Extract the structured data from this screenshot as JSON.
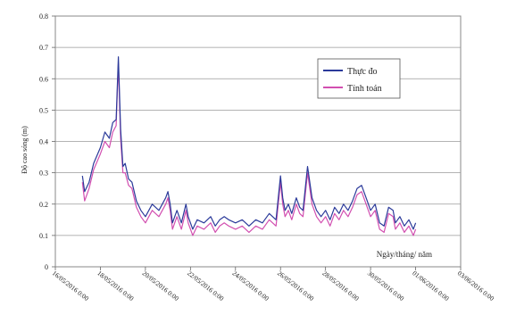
{
  "chart_data": {
    "type": "line",
    "title": "",
    "xlabel": "Ngày/tháng/ năm",
    "ylabel": "Độ cao sóng (m)",
    "ylim": [
      0,
      0.8
    ],
    "yticks": [
      "0",
      "0.1",
      "0.2",
      "0.3",
      "0.4",
      "0.5",
      "0.6",
      "0.7",
      "0.8"
    ],
    "xlim": [
      0,
      18
    ],
    "xtick_values": [
      0,
      2,
      4,
      6,
      8,
      10,
      12,
      14,
      16,
      18
    ],
    "xticks": [
      "16/05/2016 0:00",
      "18/05/2016 0:00",
      "20/05/2016 0:00",
      "22/05/2016 0:00",
      "24/05/2016 0:00",
      "26/05/2016 0:00",
      "28/05/2016 0:00",
      "30/05/2016 0:00",
      "01/06/2016 0:00",
      "03/06/2016 0:00"
    ],
    "grid": "horizontal",
    "legend_position": "top-right",
    "series": [
      {
        "name": "Thực đo",
        "color": "#2b3a9a",
        "x": [
          1.2,
          1.3,
          1.5,
          1.7,
          2.0,
          2.2,
          2.4,
          2.55,
          2.7,
          2.8,
          2.9,
          3.0,
          3.1,
          3.25,
          3.4,
          3.6,
          3.8,
          4.0,
          4.3,
          4.6,
          4.9,
          5.0,
          5.1,
          5.2,
          5.4,
          5.6,
          5.8,
          5.9,
          6.1,
          6.3,
          6.6,
          6.9,
          7.1,
          7.3,
          7.5,
          7.7,
          8.0,
          8.3,
          8.6,
          8.9,
          9.2,
          9.5,
          9.8,
          10.0,
          10.1,
          10.2,
          10.35,
          10.5,
          10.7,
          10.85,
          11.0,
          11.2,
          11.4,
          11.6,
          11.8,
          12.0,
          12.2,
          12.4,
          12.6,
          12.8,
          13.0,
          13.2,
          13.4,
          13.6,
          13.8,
          14.0,
          14.2,
          14.4,
          14.6,
          14.8,
          15.0,
          15.1,
          15.3,
          15.5,
          15.7,
          15.9,
          16.0
        ],
        "values": [
          0.29,
          0.24,
          0.27,
          0.33,
          0.38,
          0.43,
          0.41,
          0.46,
          0.47,
          0.67,
          0.44,
          0.32,
          0.33,
          0.28,
          0.27,
          0.21,
          0.18,
          0.16,
          0.2,
          0.18,
          0.22,
          0.24,
          0.2,
          0.14,
          0.18,
          0.14,
          0.2,
          0.16,
          0.12,
          0.15,
          0.14,
          0.16,
          0.13,
          0.15,
          0.16,
          0.15,
          0.14,
          0.15,
          0.13,
          0.15,
          0.14,
          0.17,
          0.15,
          0.29,
          0.22,
          0.18,
          0.2,
          0.17,
          0.22,
          0.19,
          0.18,
          0.32,
          0.22,
          0.18,
          0.16,
          0.18,
          0.15,
          0.19,
          0.17,
          0.2,
          0.18,
          0.21,
          0.25,
          0.26,
          0.22,
          0.18,
          0.2,
          0.14,
          0.13,
          0.19,
          0.18,
          0.14,
          0.16,
          0.13,
          0.15,
          0.12,
          0.14
        ]
      },
      {
        "name": "Tính toán",
        "color": "#d24fb0",
        "x": [
          1.2,
          1.3,
          1.5,
          1.7,
          2.0,
          2.2,
          2.4,
          2.55,
          2.7,
          2.8,
          2.9,
          3.0,
          3.1,
          3.25,
          3.4,
          3.6,
          3.8,
          4.0,
          4.3,
          4.6,
          4.9,
          5.0,
          5.1,
          5.2,
          5.4,
          5.6,
          5.8,
          5.9,
          6.1,
          6.3,
          6.6,
          6.9,
          7.1,
          7.3,
          7.5,
          7.7,
          8.0,
          8.3,
          8.6,
          8.9,
          9.2,
          9.5,
          9.8,
          10.0,
          10.1,
          10.2,
          10.35,
          10.5,
          10.7,
          10.85,
          11.0,
          11.2,
          11.4,
          11.6,
          11.8,
          12.0,
          12.2,
          12.4,
          12.6,
          12.8,
          13.0,
          13.2,
          13.4,
          13.6,
          13.8,
          14.0,
          14.2,
          14.4,
          14.6,
          14.8,
          15.0,
          15.1,
          15.3,
          15.5,
          15.7,
          15.9,
          16.0
        ],
        "values": [
          0.27,
          0.21,
          0.25,
          0.31,
          0.36,
          0.4,
          0.38,
          0.43,
          0.45,
          0.65,
          0.41,
          0.3,
          0.3,
          0.26,
          0.25,
          0.19,
          0.16,
          0.14,
          0.18,
          0.16,
          0.2,
          0.22,
          0.18,
          0.12,
          0.16,
          0.12,
          0.18,
          0.14,
          0.1,
          0.13,
          0.12,
          0.14,
          0.11,
          0.13,
          0.14,
          0.13,
          0.12,
          0.13,
          0.11,
          0.13,
          0.12,
          0.15,
          0.13,
          0.27,
          0.2,
          0.16,
          0.18,
          0.15,
          0.2,
          0.17,
          0.16,
          0.3,
          0.2,
          0.16,
          0.14,
          0.16,
          0.13,
          0.17,
          0.15,
          0.18,
          0.16,
          0.19,
          0.23,
          0.24,
          0.2,
          0.16,
          0.18,
          0.12,
          0.11,
          0.17,
          0.16,
          0.12,
          0.14,
          0.11,
          0.13,
          0.1,
          0.12
        ]
      }
    ]
  }
}
